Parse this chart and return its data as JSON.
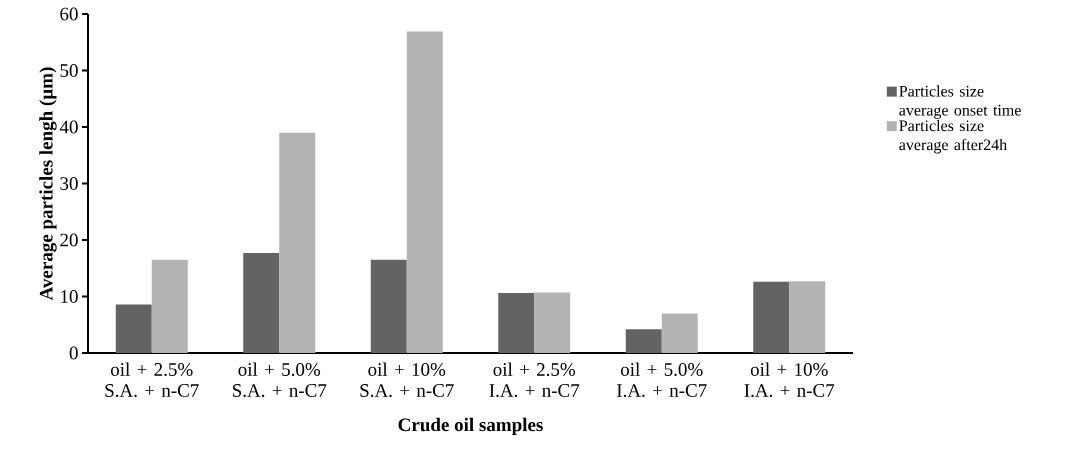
{
  "chart_data": {
    "type": "bar",
    "xlabel": "Crude oil samples",
    "ylabel": "Average particles  lengh (µm)",
    "categories": [
      "oil + 2.5% S.A. + n-C7",
      "oil + 5.0% S.A. + n-C7",
      "oil + 10% S.A. + n-C7",
      "oil + 2.5% I.A. + n-C7",
      "oil + 5.0% I.A. + n-C7",
      "oil + 10% I.A. + n-C7"
    ],
    "series": [
      {
        "name": "Particles size average onset time",
        "color": "#636363",
        "values": [
          8.6,
          17.7,
          16.5,
          10.6,
          4.2,
          12.6
        ]
      },
      {
        "name": "Particles size average after24h",
        "color": "#b3b3b3",
        "values": [
          16.5,
          39.0,
          56.9,
          10.7,
          7.0,
          12.7
        ]
      }
    ],
    "ylim": [
      0,
      60
    ],
    "yticks": [
      0,
      10,
      20,
      30,
      40,
      50,
      60
    ],
    "grid": false,
    "legend": "right"
  }
}
